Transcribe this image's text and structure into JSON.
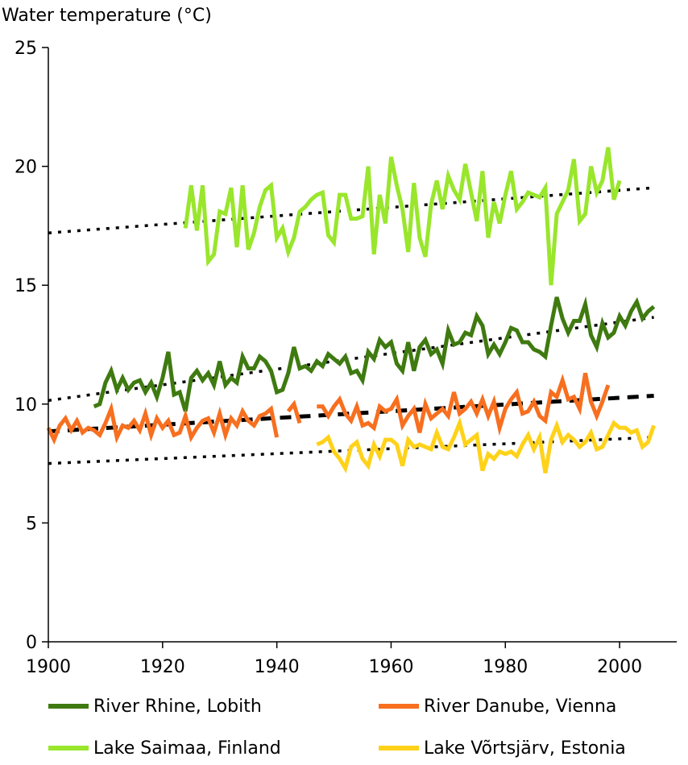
{
  "chart_data": {
    "type": "line",
    "title": "",
    "xlabel": "",
    "ylabel": "Water temperature (°C)",
    "xlim": [
      1900,
      2010
    ],
    "ylim": [
      0,
      25
    ],
    "x_ticks": [
      1900,
      1920,
      1940,
      1960,
      1980,
      2000
    ],
    "y_ticks": [
      0,
      5,
      10,
      15,
      20,
      25
    ],
    "grid": false,
    "legend_position": "bottom",
    "series": [
      {
        "name": "River Rhine, Lobith",
        "color": "#3f7a10",
        "x": [
          1908,
          1909,
          1910,
          1911,
          1912,
          1913,
          1914,
          1915,
          1916,
          1917,
          1918,
          1919,
          1920,
          1921,
          1922,
          1923,
          1924,
          1925,
          1926,
          1927,
          1928,
          1929,
          1930,
          1931,
          1932,
          1933,
          1934,
          1935,
          1936,
          1937,
          1938,
          1939,
          1940,
          1941,
          1942,
          1943,
          1944,
          1945,
          1946,
          1947,
          1948,
          1949,
          1950,
          1951,
          1952,
          1953,
          1954,
          1955,
          1956,
          1957,
          1958,
          1959,
          1960,
          1961,
          1962,
          1963,
          1964,
          1965,
          1966,
          1967,
          1968,
          1969,
          1970,
          1971,
          1972,
          1973,
          1974,
          1975,
          1976,
          1977,
          1978,
          1979,
          1980,
          1981,
          1982,
          1983,
          1984,
          1985,
          1986,
          1987,
          1988,
          1989,
          1990,
          1991,
          1992,
          1993,
          1994,
          1995,
          1996,
          1997,
          1998,
          1999,
          2000,
          2001,
          2002,
          2003,
          2004,
          2005,
          2006
        ],
        "y": [
          9.9,
          10.0,
          10.9,
          11.4,
          10.6,
          11.1,
          10.6,
          10.9,
          11.0,
          10.5,
          10.9,
          10.3,
          11.1,
          12.2,
          10.4,
          10.5,
          9.7,
          11.1,
          11.4,
          11.0,
          11.3,
          10.8,
          11.8,
          10.8,
          11.1,
          10.9,
          12.0,
          11.5,
          11.5,
          12.0,
          11.8,
          11.4,
          10.5,
          10.6,
          11.3,
          12.4,
          11.5,
          11.6,
          11.4,
          11.8,
          11.6,
          12.1,
          11.9,
          11.7,
          12.0,
          11.3,
          11.4,
          11.0,
          12.2,
          11.9,
          12.7,
          12.4,
          12.6,
          11.7,
          11.4,
          12.6,
          11.4,
          12.4,
          12.7,
          12.1,
          12.3,
          11.7,
          13.1,
          12.5,
          12.6,
          13.0,
          12.9,
          13.7,
          13.3,
          12.1,
          12.5,
          12.1,
          12.6,
          13.2,
          13.1,
          12.6,
          12.6,
          12.3,
          12.2,
          12.0,
          13.3,
          14.5,
          13.6,
          13.0,
          13.5,
          13.5,
          14.2,
          12.9,
          12.4,
          13.4,
          12.8,
          13.0,
          13.7,
          13.3,
          13.9,
          14.3,
          13.6,
          13.9,
          14.1
        ]
      },
      {
        "name": "River Danube, Vienna",
        "color": "#f76f1f",
        "x": [
          1900,
          1901,
          1902,
          1903,
          1904,
          1905,
          1906,
          1907,
          1908,
          1909,
          1910,
          1911,
          1912,
          1913,
          1914,
          1915,
          1916,
          1917,
          1918,
          1919,
          1920,
          1921,
          1922,
          1923,
          1924,
          1925,
          1926,
          1927,
          1928,
          1929,
          1930,
          1931,
          1932,
          1933,
          1934,
          1935,
          1936,
          1937,
          1938,
          1939,
          1940,
          null,
          1942,
          1943,
          1944,
          null,
          1947,
          1948,
          1949,
          1950,
          1951,
          1952,
          1953,
          1954,
          1955,
          1956,
          1957,
          1958,
          1959,
          1960,
          1961,
          1962,
          1963,
          1964,
          1965,
          1966,
          1967,
          1968,
          1969,
          1970,
          1971,
          1972,
          1973,
          1974,
          1975,
          1976,
          1977,
          1978,
          1979,
          1980,
          1981,
          1982,
          1983,
          1984,
          1985,
          1986,
          1987,
          1988,
          1989,
          1990,
          1991,
          1992,
          1993,
          1994,
          1995,
          1996,
          1997,
          1998
        ],
        "y": [
          9.0,
          8.5,
          9.1,
          9.4,
          8.9,
          9.3,
          8.8,
          9.0,
          8.9,
          8.7,
          9.2,
          9.8,
          8.6,
          9.1,
          9.0,
          9.3,
          8.9,
          9.6,
          8.7,
          9.4,
          9.0,
          9.3,
          8.7,
          8.8,
          9.5,
          8.6,
          9.0,
          9.3,
          9.4,
          8.8,
          9.6,
          8.7,
          9.4,
          9.1,
          9.7,
          9.3,
          9.1,
          9.5,
          9.6,
          9.8,
          8.6,
          null,
          9.7,
          10.0,
          9.2,
          null,
          9.9,
          9.9,
          9.5,
          9.9,
          10.2,
          9.6,
          9.3,
          9.9,
          9.1,
          9.2,
          9.0,
          9.9,
          9.7,
          9.8,
          10.2,
          9.1,
          9.5,
          9.8,
          8.8,
          10.0,
          9.4,
          9.6,
          9.8,
          9.5,
          10.5,
          9.6,
          9.8,
          10.1,
          9.6,
          10.2,
          9.5,
          10.1,
          9.0,
          9.8,
          10.2,
          10.5,
          9.6,
          9.7,
          10.1,
          9.5,
          9.3,
          10.5,
          10.3,
          11.0,
          10.2,
          10.3,
          9.8,
          11.3,
          10.1,
          9.5,
          10.1,
          10.8
        ]
      },
      {
        "name": "Lake Saimaa, Finland",
        "color": "#99e62c",
        "x": [
          1924,
          1925,
          1926,
          1927,
          1928,
          1929,
          1930,
          1931,
          1932,
          1933,
          1934,
          1935,
          1936,
          1937,
          1938,
          1939,
          1940,
          1941,
          1942,
          1943,
          1944,
          1945,
          1946,
          1947,
          1948,
          1949,
          1950,
          1951,
          1952,
          1953,
          1954,
          1955,
          1956,
          1957,
          1958,
          1959,
          1960,
          1961,
          1962,
          1963,
          1964,
          1965,
          1966,
          1967,
          1968,
          1969,
          1970,
          1971,
          1972,
          1973,
          1974,
          1975,
          1976,
          1977,
          1978,
          1979,
          1980,
          1981,
          1982,
          1983,
          1984,
          1985,
          1986,
          1987,
          1988,
          1989,
          1990,
          1991,
          1992,
          1993,
          1994,
          1995,
          1996,
          1997,
          1998,
          1999,
          2000
        ],
        "y": [
          17.4,
          19.2,
          17.3,
          19.2,
          16.0,
          16.3,
          18.1,
          18.0,
          19.1,
          16.6,
          19.2,
          16.5,
          17.2,
          18.3,
          19.0,
          19.2,
          17.0,
          17.4,
          16.4,
          17.0,
          18.1,
          18.3,
          18.6,
          18.8,
          18.9,
          17.1,
          16.8,
          18.8,
          18.8,
          17.8,
          17.8,
          17.9,
          20.0,
          16.3,
          18.8,
          17.6,
          20.4,
          19.2,
          18.2,
          16.4,
          19.3,
          17.0,
          16.2,
          18.4,
          19.4,
          18.2,
          19.6,
          19.0,
          18.6,
          20.1,
          18.9,
          17.7,
          19.8,
          17.0,
          18.5,
          17.6,
          18.8,
          19.8,
          18.2,
          18.5,
          18.9,
          18.8,
          18.7,
          19.1,
          15.0,
          18.0,
          18.5,
          19.0,
          20.3,
          17.7,
          18.0,
          20.0,
          18.9,
          19.4,
          20.8,
          18.6,
          19.4
        ]
      },
      {
        "name": "Lake Võrtsjärv, Estonia",
        "color": "#ffd21a",
        "x": [
          1947,
          1948,
          1949,
          1950,
          1951,
          1952,
          1953,
          1954,
          1955,
          1956,
          1957,
          1958,
          1959,
          1960,
          1961,
          1962,
          1963,
          1964,
          1965,
          1966,
          1967,
          1968,
          1969,
          1970,
          1971,
          1972,
          1973,
          1974,
          1975,
          1976,
          1977,
          1978,
          1979,
          1980,
          1981,
          1982,
          1983,
          1984,
          1985,
          1986,
          1987,
          1988,
          1989,
          1990,
          1991,
          1992,
          1993,
          1994,
          1995,
          1996,
          1997,
          1998,
          1999,
          2000,
          2001,
          2002,
          2003,
          2004,
          2005,
          2006
        ],
        "y": [
          8.3,
          8.4,
          8.6,
          8.0,
          7.7,
          7.3,
          8.2,
          8.4,
          7.7,
          7.4,
          8.3,
          7.8,
          8.5,
          8.5,
          8.3,
          7.4,
          8.5,
          8.2,
          8.3,
          8.2,
          8.1,
          8.8,
          8.2,
          8.1,
          8.6,
          9.2,
          8.3,
          8.5,
          8.7,
          7.2,
          7.9,
          7.7,
          8.0,
          7.9,
          8.0,
          7.8,
          8.3,
          8.7,
          8.1,
          8.6,
          7.1,
          8.5,
          9.1,
          8.4,
          8.7,
          8.5,
          8.2,
          8.4,
          8.8,
          8.1,
          8.2,
          8.7,
          9.2,
          9.0,
          9.0,
          8.8,
          8.9,
          8.2,
          8.4,
          9.1
        ]
      }
    ],
    "trendlines": [
      {
        "series": "River Rhine, Lobith",
        "x": [
          1900,
          2006
        ],
        "y": [
          10.15,
          13.65
        ],
        "color": "#000000",
        "style": "dotted"
      },
      {
        "series": "River Danube, Vienna",
        "x": [
          1900,
          2006
        ],
        "y": [
          8.85,
          10.35
        ],
        "color": "#000000",
        "style": "dashed"
      },
      {
        "series": "Lake Saimaa, Finland",
        "x": [
          1900,
          2006
        ],
        "y": [
          17.2,
          19.1
        ],
        "color": "#000000",
        "style": "dotted"
      },
      {
        "series": "Lake Võrtsjärv, Estonia",
        "x": [
          1900,
          2006
        ],
        "y": [
          7.5,
          8.6
        ],
        "color": "#000000",
        "style": "dotted"
      }
    ],
    "legend": [
      {
        "label": "River Rhine, Lobith",
        "color": "#3f7a10"
      },
      {
        "label": "River Danube, Vienna",
        "color": "#f76f1f"
      },
      {
        "label": "Lake Saimaa, Finland",
        "color": "#99e62c"
      },
      {
        "label": "Lake Võrtsjärv, Estonia",
        "color": "#ffd21a"
      }
    ]
  }
}
